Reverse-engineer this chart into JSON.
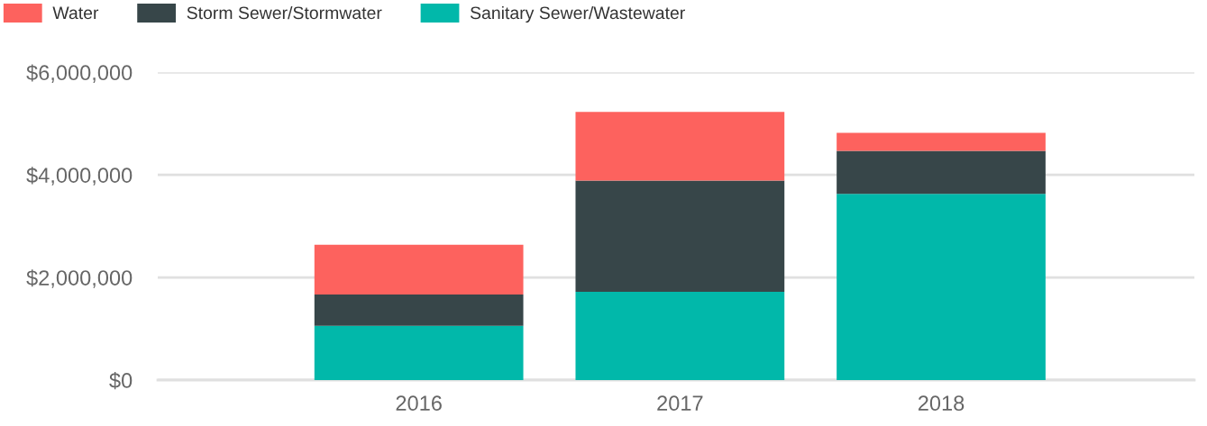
{
  "chart_data": {
    "type": "bar",
    "stacked": true,
    "categories": [
      "2016",
      "2017",
      "2018"
    ],
    "series": [
      {
        "name": "Sanitary Sewer/Wastewater",
        "color": "#01b8aa",
        "values": [
          1060000,
          1720000,
          3630000
        ]
      },
      {
        "name": "Storm Sewer/Stormwater",
        "color": "#374649",
        "values": [
          610000,
          2170000,
          840000
        ]
      },
      {
        "name": "Water",
        "color": "#fd625e",
        "values": [
          970000,
          1340000,
          350000
        ]
      }
    ],
    "ylim": [
      0,
      6000000
    ],
    "yticks": [
      {
        "value": 0,
        "label": "$0"
      },
      {
        "value": 2000000,
        "label": "$2,000,000"
      },
      {
        "value": 4000000,
        "label": "$4,000,000"
      },
      {
        "value": 6000000,
        "label": "$6,000,000"
      }
    ],
    "grid": "y",
    "legend": "top left"
  }
}
